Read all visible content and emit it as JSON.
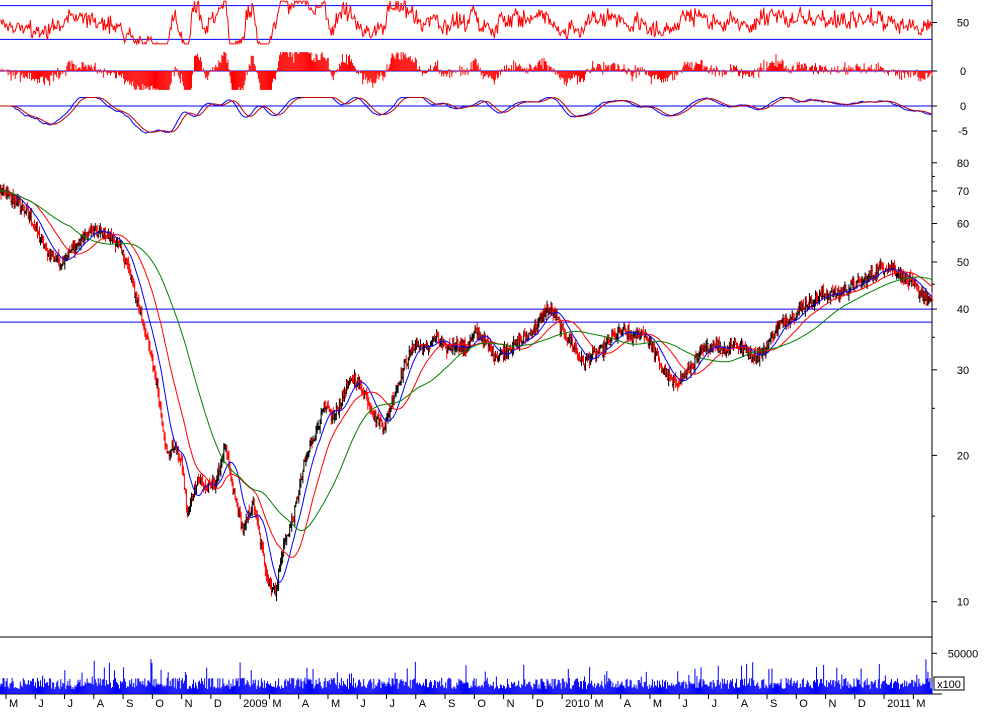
{
  "chart_data": {
    "type": "line",
    "title": "",
    "scale": "log",
    "colors": {
      "price_up": "#000000",
      "price_down": "#ff0000",
      "ma_short": "#0000ff",
      "ma_mid": "#ff0000",
      "ma_long": "#008000",
      "oscillator": "#ff0000",
      "histogram": "#ff0000",
      "macd": "#0000ff",
      "macd_signal": "#c00000",
      "volume": "#0000ff",
      "reference_line": "#0000ff",
      "axis": "#000000"
    },
    "x_tick_labels": [
      "M",
      "J",
      "J",
      "A",
      "S",
      "O",
      "N",
      "D",
      "2009",
      "M",
      "A",
      "M",
      "J",
      "J",
      "A",
      "S",
      "O",
      "N",
      "D",
      "2010",
      "M",
      "A",
      "M",
      "J",
      "J",
      "A",
      "S",
      "O",
      "N",
      "D",
      "2011",
      "M"
    ],
    "panels": [
      {
        "name": "oscillator",
        "tick_labels": [
          "50"
        ],
        "reference_lines": [
          35,
          65
        ],
        "ylim": [
          30,
          70
        ]
      },
      {
        "name": "histogram",
        "tick_labels": [
          "0"
        ],
        "ylim": [
          -5,
          5
        ]
      },
      {
        "name": "macd",
        "tick_labels": [
          "0",
          "-5"
        ],
        "ylim": [
          -8,
          2
        ]
      },
      {
        "name": "price",
        "tick_labels": [
          "80",
          "70",
          "60",
          "50",
          "40",
          "30",
          "20",
          "10"
        ],
        "ylim": [
          8.5,
          85
        ],
        "reference_lines": [
          40,
          37.6
        ]
      },
      {
        "name": "volume",
        "tick_labels": [
          "50000"
        ],
        "unit_label": "x100",
        "ylim": [
          0,
          70000
        ]
      }
    ],
    "series": [
      {
        "kind": "price",
        "anchors": [
          [
            0,
            70
          ],
          [
            15,
            67
          ],
          [
            30,
            62
          ],
          [
            45,
            53
          ],
          [
            60,
            50
          ],
          [
            75,
            54
          ],
          [
            90,
            58
          ],
          [
            105,
            57
          ],
          [
            115,
            55
          ],
          [
            125,
            50
          ],
          [
            135,
            42
          ],
          [
            145,
            35
          ],
          [
            155,
            28
          ],
          [
            165,
            20
          ],
          [
            172,
            21
          ],
          [
            180,
            19
          ],
          [
            185,
            15
          ],
          [
            195,
            18
          ],
          [
            205,
            17
          ],
          [
            215,
            18
          ],
          [
            222,
            21
          ],
          [
            230,
            17
          ],
          [
            240,
            14
          ],
          [
            250,
            16
          ],
          [
            258,
            13
          ],
          [
            265,
            11
          ],
          [
            272,
            10.5
          ],
          [
            280,
            13
          ],
          [
            290,
            15
          ],
          [
            300,
            19
          ],
          [
            310,
            22
          ],
          [
            320,
            25
          ],
          [
            330,
            24
          ],
          [
            340,
            27
          ],
          [
            350,
            29
          ],
          [
            360,
            27
          ],
          [
            370,
            24
          ],
          [
            380,
            23
          ],
          [
            390,
            27
          ],
          [
            400,
            31
          ],
          [
            410,
            34
          ],
          [
            420,
            33
          ],
          [
            430,
            35
          ],
          [
            440,
            33
          ],
          [
            450,
            34
          ],
          [
            460,
            33
          ],
          [
            470,
            36
          ],
          [
            480,
            34
          ],
          [
            490,
            32
          ],
          [
            500,
            33
          ],
          [
            510,
            34
          ],
          [
            520,
            35
          ],
          [
            530,
            37
          ],
          [
            540,
            40
          ],
          [
            548,
            39
          ],
          [
            555,
            36
          ],
          [
            565,
            34
          ],
          [
            575,
            31
          ],
          [
            585,
            32
          ],
          [
            595,
            33
          ],
          [
            605,
            35
          ],
          [
            615,
            36
          ],
          [
            625,
            35
          ],
          [
            635,
            36
          ],
          [
            645,
            33
          ],
          [
            655,
            30
          ],
          [
            665,
            28
          ],
          [
            675,
            29
          ],
          [
            685,
            31
          ],
          [
            695,
            33
          ],
          [
            705,
            34
          ],
          [
            715,
            33
          ],
          [
            725,
            34
          ],
          [
            735,
            33
          ],
          [
            745,
            32
          ],
          [
            755,
            33
          ],
          [
            765,
            36
          ],
          [
            775,
            38
          ],
          [
            785,
            39
          ],
          [
            795,
            41
          ],
          [
            805,
            42
          ],
          [
            815,
            43
          ],
          [
            825,
            43
          ],
          [
            835,
            44
          ],
          [
            845,
            45
          ],
          [
            855,
            46
          ],
          [
            865,
            48
          ],
          [
            875,
            49
          ],
          [
            885,
            48
          ],
          [
            895,
            46
          ],
          [
            905,
            44
          ],
          [
            915,
            42
          ],
          [
            920,
            41
          ]
        ]
      }
    ]
  }
}
